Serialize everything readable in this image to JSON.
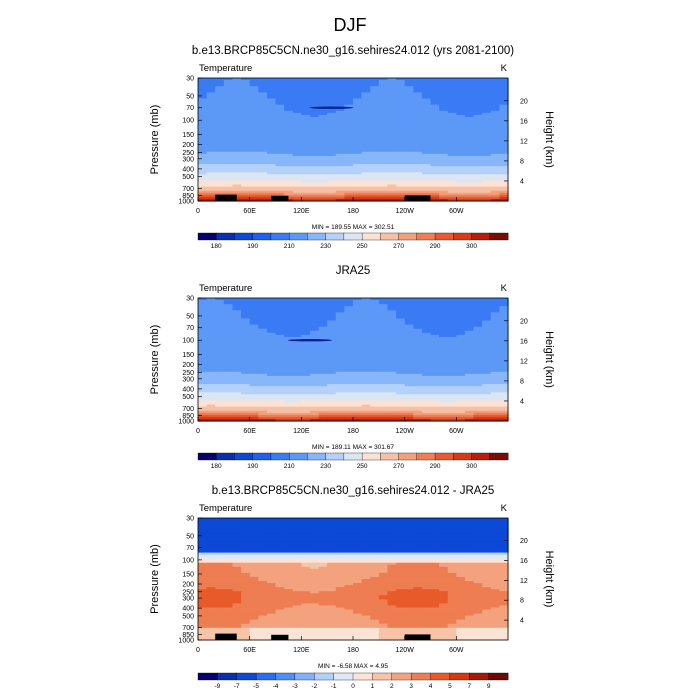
{
  "page": {
    "main_title": "DJF"
  },
  "panels": [
    {
      "title": "b.e13.BRCP85C5CN.ne30_g16.sehires24.012 (yrs 2081-2100)",
      "subtitle_left": "Temperature",
      "unit": "K",
      "min_max": "MIN = 189.55  MAX = 302.51"
    },
    {
      "title": "JRA25",
      "subtitle_left": "Temperature",
      "unit": "K",
      "min_max": "MIN = 189.11  MAX = 301.67"
    },
    {
      "title": "b.e13.BRCP85C5CN.ne30_g16.sehires24.012 - JRA25",
      "subtitle_left": "Temperature",
      "unit": "K",
      "min_max": "MIN =  -6.58  MAX =  4.95"
    }
  ],
  "chart_data": [
    {
      "type": "heatmap",
      "title": "b.e13.BRCP85C5CN.ne30_g16.sehires24.012 (yrs 2081-2100)",
      "subtitle": "Temperature",
      "xlabel": "",
      "ylabel": "Pressure (mb)",
      "y2label": "Height (km)",
      "x_ticks": [
        "0",
        "60E",
        "120E",
        "180",
        "120W",
        "60W"
      ],
      "x_range": [
        0,
        360
      ],
      "y_ticks": [
        "30",
        "50",
        "70",
        "100",
        "150",
        "200",
        "250",
        "300",
        "400",
        "500",
        "700",
        "850",
        "1000"
      ],
      "y_values": [
        30,
        50,
        70,
        100,
        150,
        200,
        250,
        300,
        400,
        500,
        700,
        850,
        1000
      ],
      "y_range": [
        30,
        1000
      ],
      "y2_ticks": [
        "20",
        "16",
        "12",
        "8",
        "4"
      ],
      "y2_values": [
        20,
        16,
        12,
        8,
        4
      ],
      "colorbar_labels": [
        "180",
        "190",
        "210",
        "230",
        "250",
        "270",
        "290",
        "300"
      ],
      "min": 189.55,
      "max": 302.51,
      "units": "K"
    },
    {
      "type": "heatmap",
      "title": "JRA25",
      "subtitle": "Temperature",
      "xlabel": "",
      "ylabel": "Pressure (mb)",
      "y2label": "Height (km)",
      "x_ticks": [
        "0",
        "60E",
        "120E",
        "180",
        "120W",
        "60W"
      ],
      "x_range": [
        0,
        360
      ],
      "y_ticks": [
        "30",
        "50",
        "70",
        "100",
        "150",
        "200",
        "250",
        "300",
        "400",
        "500",
        "700",
        "850",
        "1000"
      ],
      "y_values": [
        30,
        50,
        70,
        100,
        150,
        200,
        250,
        300,
        400,
        500,
        700,
        850,
        1000
      ],
      "y_range": [
        30,
        1000
      ],
      "y2_ticks": [
        "20",
        "16",
        "12",
        "8",
        "4"
      ],
      "y2_values": [
        20,
        16,
        12,
        8,
        4
      ],
      "colorbar_labels": [
        "180",
        "190",
        "210",
        "230",
        "250",
        "270",
        "290",
        "300"
      ],
      "min": 189.11,
      "max": 301.67,
      "units": "K"
    },
    {
      "type": "heatmap",
      "title": "b.e13.BRCP85C5CN.ne30_g16.sehires24.012 - JRA25",
      "subtitle": "Temperature",
      "xlabel": "",
      "ylabel": "Pressure (mb)",
      "y2label": "Height (km)",
      "x_ticks": [
        "0",
        "60E",
        "120E",
        "180",
        "120W",
        "60W"
      ],
      "x_range": [
        0,
        360
      ],
      "y_ticks": [
        "30",
        "50",
        "70",
        "100",
        "150",
        "200",
        "250",
        "300",
        "400",
        "500",
        "700",
        "850",
        "1000"
      ],
      "y_values": [
        30,
        50,
        70,
        100,
        150,
        200,
        250,
        300,
        400,
        500,
        700,
        850,
        1000
      ],
      "y_range": [
        30,
        1000
      ],
      "y2_ticks": [
        "20",
        "16",
        "12",
        "8",
        "4"
      ],
      "y2_values": [
        20,
        16,
        12,
        8,
        4
      ],
      "colorbar_labels": [
        "-9",
        "-7",
        "-5",
        "-4",
        "-3",
        "-2",
        "-1",
        "0",
        "1",
        "2",
        "3",
        "4",
        "5",
        "7",
        "9"
      ],
      "min": -6.58,
      "max": 4.95,
      "units": "K"
    }
  ],
  "colors": {
    "abs_palette": [
      "#08006a",
      "#0a2fae",
      "#0d49d6",
      "#2060ee",
      "#3a7bf4",
      "#5c99f7",
      "#88b6fa",
      "#b5d1fb",
      "#dce6f3",
      "#fbe2d3",
      "#f7c0a5",
      "#f3a07b",
      "#ef7e55",
      "#e85a30",
      "#d83a17",
      "#b81e0a",
      "#7a0c00"
    ],
    "diff_palette": [
      "#08006a",
      "#0a2fae",
      "#0d49d6",
      "#2a6ef0",
      "#4e8ff5",
      "#7fb0f8",
      "#b1d0fb",
      "#dde8f8",
      "#fbe3d6",
      "#f7c4a8",
      "#f3a27d",
      "#ee7d52",
      "#e95a2a",
      "#d8380f",
      "#a51a03",
      "#6a0a00"
    ],
    "topo": "#000000"
  }
}
